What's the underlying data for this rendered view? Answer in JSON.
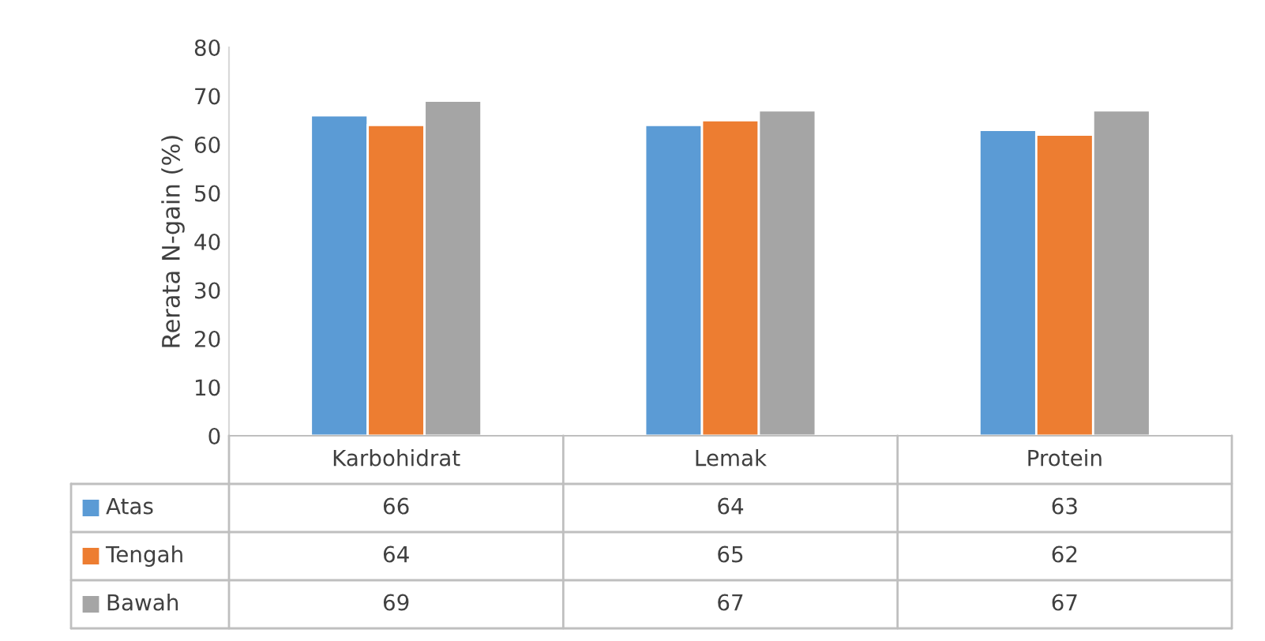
{
  "chart_data": {
    "type": "bar",
    "ylabel": "Rerata N-gain (%)",
    "categories": [
      "Karbohidrat",
      "Lemak",
      "Protein"
    ],
    "series": [
      {
        "name": "Atas",
        "color": "#5b9bd5",
        "values": [
          66,
          64,
          63
        ]
      },
      {
        "name": "Tengah",
        "color": "#ed7d31",
        "values": [
          64,
          65,
          62
        ]
      },
      {
        "name": "Bawah",
        "color": "#a5a5a5",
        "values": [
          69,
          67,
          67
        ]
      }
    ],
    "ylim": [
      0,
      80
    ],
    "yticks": [
      0,
      10,
      20,
      30,
      40,
      50,
      60,
      70,
      80
    ],
    "data_labels": true,
    "legend": "bottom",
    "grid": false
  }
}
